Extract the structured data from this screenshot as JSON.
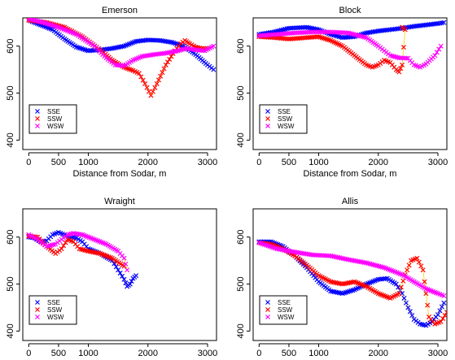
{
  "chart_data": [
    {
      "type": "scatter",
      "title": "Emerson",
      "xlabel": "Distance from Sodar, m",
      "ylabel": "",
      "xlim": [
        -100,
        3150
      ],
      "ylim": [
        380,
        660
      ],
      "xticks": [
        0,
        500,
        1000,
        2000,
        3000
      ],
      "yticks": [
        400,
        500,
        600
      ],
      "legend": {
        "position": "bottom-left",
        "entries": [
          "SSE",
          "SSW",
          "WSW"
        ]
      },
      "series": [
        {
          "name": "SSE",
          "color": "#0000ff",
          "marker": "x",
          "points": [
            [
              0,
              655
            ],
            [
              200,
              645
            ],
            [
              400,
              635
            ],
            [
              600,
              615
            ],
            [
              800,
              598
            ],
            [
              1000,
              590
            ],
            [
              1200,
              592
            ],
            [
              1400,
              595
            ],
            [
              1600,
              600
            ],
            [
              1800,
              610
            ],
            [
              2000,
              613
            ],
            [
              2200,
              612
            ],
            [
              2400,
              608
            ],
            [
              2600,
              600
            ],
            [
              2800,
              582
            ],
            [
              3000,
              560
            ],
            [
              3100,
              550
            ]
          ]
        },
        {
          "name": "SSW",
          "color": "#ff0000",
          "marker": "x",
          "points": [
            [
              0,
              655
            ],
            [
              300,
              650
            ],
            [
              600,
              640
            ],
            [
              900,
              620
            ],
            [
              1200,
              592
            ],
            [
              1400,
              570
            ],
            [
              1600,
              555
            ],
            [
              1750,
              548
            ],
            [
              1850,
              542
            ],
            [
              1950,
              520
            ],
            [
              2050,
              495
            ],
            [
              2150,
              520
            ],
            [
              2300,
              560
            ],
            [
              2450,
              590
            ],
            [
              2550,
              605
            ],
            [
              2620,
              612
            ],
            [
              2700,
              605
            ],
            [
              2800,
              598
            ],
            [
              2900,
              595
            ],
            [
              3000,
              595
            ]
          ]
        },
        {
          "name": "WSW",
          "color": "#ff00ff",
          "marker": "x",
          "points": [
            [
              0,
              658
            ],
            [
              250,
              650
            ],
            [
              500,
              640
            ],
            [
              800,
              625
            ],
            [
              1100,
              600
            ],
            [
              1300,
              575
            ],
            [
              1450,
              560
            ],
            [
              1600,
              558
            ],
            [
              1750,
              570
            ],
            [
              1900,
              578
            ],
            [
              2100,
              582
            ],
            [
              2300,
              585
            ],
            [
              2500,
              590
            ],
            [
              2650,
              595
            ],
            [
              2800,
              592
            ],
            [
              2950,
              590
            ],
            [
              3100,
              600
            ]
          ]
        }
      ]
    },
    {
      "type": "scatter",
      "title": "Block",
      "xlabel": "Distance from Sodar, m",
      "ylabel": "",
      "xlim": [
        -100,
        3150
      ],
      "ylim": [
        380,
        660
      ],
      "xticks": [
        0,
        500,
        1000,
        2000,
        3000
      ],
      "yticks": [
        400,
        500,
        600
      ],
      "legend": {
        "position": "bottom-left",
        "entries": [
          "SSE",
          "SSW",
          "WSW"
        ]
      },
      "series": [
        {
          "name": "SSE",
          "color": "#0000ff",
          "marker": "x",
          "points": [
            [
              0,
              625
            ],
            [
              250,
              630
            ],
            [
              500,
              638
            ],
            [
              800,
              640
            ],
            [
              1000,
              635
            ],
            [
              1200,
              625
            ],
            [
              1400,
              618
            ],
            [
              1600,
              620
            ],
            [
              1800,
              628
            ],
            [
              2000,
              632
            ],
            [
              2200,
              635
            ],
            [
              2400,
              638
            ],
            [
              2600,
              642
            ],
            [
              2800,
              645
            ],
            [
              3000,
              648
            ],
            [
              3100,
              650
            ]
          ]
        },
        {
          "name": "SSW",
          "color": "#ff0000",
          "marker": "x",
          "points": [
            [
              0,
              620
            ],
            [
              250,
              618
            ],
            [
              500,
              615
            ],
            [
              800,
              618
            ],
            [
              1000,
              620
            ],
            [
              1200,
              612
            ],
            [
              1400,
              600
            ],
            [
              1600,
              580
            ],
            [
              1800,
              560
            ],
            [
              1900,
              555
            ],
            [
              2000,
              560
            ],
            [
              2100,
              570
            ],
            [
              2200,
              565
            ],
            [
              2300,
              550
            ],
            [
              2350,
              545
            ],
            [
              2400,
              560
            ],
            [
              2450,
              635
            ],
            [
              2400,
              640
            ]
          ]
        },
        {
          "name": "WSW",
          "color": "#ff00ff",
          "marker": "x",
          "points": [
            [
              0,
              622
            ],
            [
              300,
              625
            ],
            [
              600,
              628
            ],
            [
              900,
              630
            ],
            [
              1200,
              630
            ],
            [
              1500,
              628
            ],
            [
              1800,
              618
            ],
            [
              2000,
              600
            ],
            [
              2100,
              590
            ],
            [
              2200,
              580
            ],
            [
              2350,
              575
            ],
            [
              2500,
              574
            ],
            [
              2600,
              560
            ],
            [
              2700,
              555
            ],
            [
              2800,
              562
            ],
            [
              2950,
              580
            ],
            [
              3050,
              600
            ]
          ]
        }
      ]
    },
    {
      "type": "scatter",
      "title": "Wraight",
      "xlabel": "Distance from Sodar, m",
      "ylabel": "",
      "xlim": [
        -100,
        3150
      ],
      "ylim": [
        380,
        660
      ],
      "xticks": [
        0,
        500,
        1000,
        2000,
        3000
      ],
      "yticks": [
        400,
        500,
        600
      ],
      "legend": {
        "position": "bottom-left",
        "entries": [
          "SSE",
          "SSW",
          "WSW"
        ]
      },
      "series": [
        {
          "name": "SSE",
          "color": "#0000ff",
          "marker": "x",
          "points": [
            [
              0,
              600
            ],
            [
              100,
              598
            ],
            [
              200,
              590
            ],
            [
              300,
              592
            ],
            [
              400,
              605
            ],
            [
              500,
              610
            ],
            [
              600,
              605
            ],
            [
              700,
              600
            ],
            [
              800,
              598
            ],
            [
              900,
              590
            ],
            [
              1000,
              575
            ],
            [
              1200,
              565
            ],
            [
              1400,
              550
            ],
            [
              1500,
              530
            ],
            [
              1600,
              510
            ],
            [
              1650,
              495
            ],
            [
              1700,
              500
            ],
            [
              1750,
              512
            ],
            [
              1800,
              518
            ]
          ]
        },
        {
          "name": "SSW",
          "color": "#ff0000",
          "marker": "x",
          "points": [
            [
              0,
              602
            ],
            [
              150,
              600
            ],
            [
              300,
              580
            ],
            [
              450,
              565
            ],
            [
              550,
              575
            ],
            [
              650,
              595
            ],
            [
              750,
              590
            ],
            [
              850,
              575
            ],
            [
              1000,
              570
            ],
            [
              1200,
              565
            ],
            [
              1400,
              555
            ],
            [
              1600,
              538
            ]
          ]
        },
        {
          "name": "WSW",
          "color": "#ff00ff",
          "marker": "x",
          "points": [
            [
              0,
              605
            ],
            [
              150,
              595
            ],
            [
              300,
              580
            ],
            [
              450,
              585
            ],
            [
              550,
              595
            ],
            [
              650,
              605
            ],
            [
              750,
              608
            ],
            [
              900,
              605
            ],
            [
              1100,
              595
            ],
            [
              1300,
              585
            ],
            [
              1500,
              570
            ],
            [
              1600,
              555
            ],
            [
              1650,
              530
            ]
          ]
        }
      ]
    },
    {
      "type": "scatter",
      "title": "Allis",
      "xlabel": "Distance from Sodar, m",
      "ylabel": "",
      "xlim": [
        -100,
        3150
      ],
      "ylim": [
        380,
        660
      ],
      "xticks": [
        0,
        500,
        1000,
        2000,
        3000
      ],
      "yticks": [
        400,
        500,
        600
      ],
      "legend": {
        "position": "bottom-left",
        "entries": [
          "SSE",
          "SSW",
          "WSW"
        ]
      },
      "series": [
        {
          "name": "SSE",
          "color": "#0000ff",
          "marker": "x",
          "points": [
            [
              0,
              590
            ],
            [
              200,
              590
            ],
            [
              400,
              580
            ],
            [
              600,
              560
            ],
            [
              800,
              535
            ],
            [
              1000,
              505
            ],
            [
              1200,
              485
            ],
            [
              1400,
              480
            ],
            [
              1600,
              488
            ],
            [
              1800,
              500
            ],
            [
              2000,
              510
            ],
            [
              2150,
              512
            ],
            [
              2300,
              500
            ],
            [
              2400,
              480
            ],
            [
              2500,
              450
            ],
            [
              2600,
              425
            ],
            [
              2700,
              415
            ],
            [
              2800,
              412
            ],
            [
              2900,
              420
            ],
            [
              3000,
              435
            ],
            [
              3100,
              460
            ]
          ]
        },
        {
          "name": "SSW",
          "color": "#ff0000",
          "marker": "x",
          "points": [
            [
              0,
              588
            ],
            [
              200,
              585
            ],
            [
              400,
              575
            ],
            [
              600,
              560
            ],
            [
              800,
              540
            ],
            [
              1000,
              518
            ],
            [
              1200,
              505
            ],
            [
              1400,
              500
            ],
            [
              1600,
              505
            ],
            [
              1800,
              495
            ],
            [
              2000,
              480
            ],
            [
              2200,
              470
            ],
            [
              2350,
              480
            ],
            [
              2450,
              520
            ],
            [
              2550,
              550
            ],
            [
              2650,
              555
            ],
            [
              2750,
              530
            ],
            [
              2800,
              480
            ],
            [
              2850,
              430
            ],
            [
              2950,
              415
            ],
            [
              3050,
              420
            ],
            [
              3150,
              440
            ]
          ]
        },
        {
          "name": "WSW",
          "color": "#ff00ff",
          "marker": "x",
          "points": [
            [
              0,
              588
            ],
            [
              300,
              575
            ],
            [
              600,
              568
            ],
            [
              900,
              562
            ],
            [
              1200,
              560
            ],
            [
              1500,
              552
            ],
            [
              1800,
              545
            ],
            [
              2100,
              535
            ],
            [
              2400,
              520
            ],
            [
              2600,
              505
            ],
            [
              2800,
              490
            ],
            [
              3000,
              480
            ],
            [
              3100,
              475
            ]
          ]
        }
      ]
    }
  ]
}
